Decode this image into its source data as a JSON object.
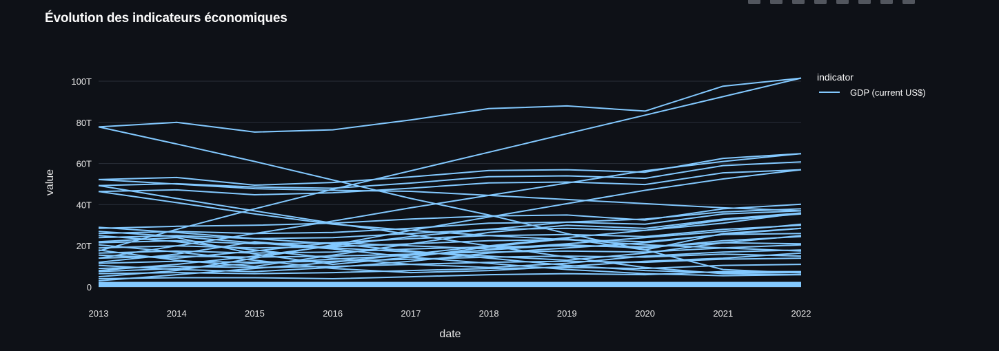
{
  "chart_data": {
    "type": "line",
    "title": "Évolution des indicateurs économiques",
    "xlabel": "date",
    "ylabel": "value",
    "x": [
      2013,
      2014,
      2015,
      2016,
      2017,
      2018,
      2019,
      2020,
      2021,
      2022
    ],
    "xtick_labels": [
      "2013",
      "2014",
      "2015",
      "2016",
      "2017",
      "2018",
      "2019",
      "2020",
      "2021",
      "2022"
    ],
    "ylim": [
      0,
      105
    ],
    "yticks": [
      0,
      20,
      40,
      60,
      80,
      100
    ],
    "ytick_labels": [
      "0",
      "20T",
      "40T",
      "60T",
      "80T",
      "100T"
    ],
    "legend": {
      "title": "indicator",
      "entries": [
        "GDP (current US$)"
      ],
      "placement": "right"
    },
    "line_color": "#83c9ff",
    "grid": true,
    "series": [
      {
        "name": "GDP (current US$)",
        "values": [
          77.8,
          80.0,
          75.3,
          76.4,
          81.2,
          86.7,
          88.0,
          85.5,
          97.6,
          101.5
        ]
      },
      {
        "name": "GDP (current US$)",
        "values": [
          77.8,
          69.5,
          61.0,
          52.0,
          43.0,
          35.0,
          26.0,
          18.0,
          8.5,
          6.8
        ]
      },
      {
        "name": "GDP (current US$)",
        "values": [
          17.5,
          28.0,
          38.0,
          47.5,
          56.5,
          65.5,
          74.5,
          83.5,
          92.5,
          101.5
        ]
      },
      {
        "name": "GDP (current US$)",
        "values": [
          52.2,
          53.2,
          49.5,
          50.8,
          53.5,
          56.6,
          57.0,
          55.8,
          62.5,
          64.8
        ]
      },
      {
        "name": "GDP (current US$)",
        "values": [
          49.3,
          50.2,
          48.6,
          48.0,
          50.5,
          53.6,
          54.0,
          52.8,
          59.0,
          60.8
        ]
      },
      {
        "name": "GDP (current US$)",
        "values": [
          46.4,
          47.2,
          44.8,
          45.8,
          48.0,
          50.6,
          51.0,
          49.8,
          55.5,
          57.0
        ]
      },
      {
        "name": "GDP (current US$)",
        "values": [
          52.2,
          50.0,
          47.8,
          47.0,
          46.5,
          44.5,
          42.5,
          40.5,
          38.5,
          37.0
        ]
      },
      {
        "name": "GDP (current US$)",
        "values": [
          49.3,
          43.0,
          37.0,
          31.0,
          25.5,
          20.0,
          14.5,
          9.5,
          6.5,
          6.0
        ]
      },
      {
        "name": "GDP (current US$)",
        "values": [
          46.4,
          41.0,
          35.5,
          30.5,
          27.5,
          25.0,
          23.0,
          20.5,
          19.0,
          20.5
        ]
      },
      {
        "name": "GDP (current US$)",
        "values": [
          14.0,
          20.0,
          26.0,
          32.0,
          38.5,
          44.5,
          50.5,
          56.5,
          61.0,
          64.8
        ]
      },
      {
        "name": "GDP (current US$)",
        "values": [
          5.0,
          8.0,
          14.0,
          20.5,
          27.5,
          34.0,
          40.5,
          47.0,
          52.5,
          57.0
        ]
      },
      {
        "name": "GDP (current US$)",
        "values": [
          28.5,
          29.5,
          30.0,
          31.0,
          33.0,
          34.5,
          35.0,
          32.5,
          38.0,
          40.2
        ]
      },
      {
        "name": "GDP (current US$)",
        "values": [
          26.0,
          27.0,
          26.0,
          26.5,
          28.5,
          31.0,
          31.5,
          30.5,
          35.5,
          37.0
        ]
      },
      {
        "name": "GDP (current US$)",
        "values": [
          24.0,
          25.0,
          23.5,
          24.0,
          26.0,
          28.0,
          28.5,
          27.5,
          32.5,
          35.5
        ]
      },
      {
        "name": "GDP (current US$)",
        "values": [
          21.5,
          22.5,
          21.0,
          21.5,
          23.5,
          25.0,
          25.5,
          24.5,
          28.0,
          30.0
        ]
      },
      {
        "name": "GDP (current US$)",
        "values": [
          19.0,
          20.0,
          19.0,
          19.5,
          21.0,
          22.5,
          23.0,
          22.0,
          25.5,
          26.0
        ]
      },
      {
        "name": "GDP (current US$)",
        "values": [
          16.5,
          17.5,
          16.5,
          17.0,
          18.5,
          19.5,
          20.0,
          19.5,
          21.5,
          21.0
        ]
      },
      {
        "name": "GDP (current US$)",
        "values": [
          14.0,
          15.0,
          14.5,
          15.0,
          16.0,
          17.0,
          17.5,
          17.0,
          19.0,
          17.5
        ]
      },
      {
        "name": "GDP (current US$)",
        "values": [
          11.5,
          12.5,
          12.0,
          12.5,
          13.5,
          14.5,
          15.0,
          14.5,
          16.0,
          15.0
        ]
      },
      {
        "name": "GDP (current US$)",
        "values": [
          9.0,
          10.0,
          9.5,
          10.0,
          11.0,
          12.0,
          12.5,
          12.0,
          13.5,
          14.0
        ]
      },
      {
        "name": "GDP (current US$)",
        "values": [
          6.5,
          7.0,
          6.5,
          7.0,
          8.0,
          9.0,
          9.5,
          9.0,
          10.5,
          11.0
        ]
      },
      {
        "name": "GDP (current US$)",
        "values": [
          4.0,
          4.5,
          4.5,
          4.0,
          5.0,
          6.0,
          6.5,
          6.0,
          7.5,
          7.5
        ]
      },
      {
        "name": "GDP (current US$)",
        "values": [
          22.0,
          24.0,
          16.0,
          11.0,
          14.5,
          19.5,
          23.5,
          18.0,
          26.0,
          28.5
        ]
      },
      {
        "name": "GDP (current US$)",
        "values": [
          12.0,
          16.0,
          22.0,
          19.0,
          17.0,
          15.0,
          13.0,
          16.5,
          21.5,
          25.0
        ]
      },
      {
        "name": "GDP (current US$)",
        "values": [
          18.0,
          13.0,
          10.0,
          15.5,
          21.0,
          26.5,
          30.0,
          28.5,
          33.0,
          36.0
        ]
      },
      {
        "name": "GDP (current US$)",
        "values": [
          3.0,
          6.0,
          9.0,
          12.0,
          16.0,
          20.0,
          24.0,
          27.5,
          31.0,
          36.0
        ]
      },
      {
        "name": "GDP (current US$)",
        "values": [
          25.0,
          22.0,
          18.0,
          14.0,
          11.0,
          9.5,
          11.5,
          15.0,
          17.0,
          18.0
        ]
      },
      {
        "name": "GDP (current US$)",
        "values": [
          8.0,
          11.0,
          15.0,
          20.0,
          24.5,
          28.0,
          31.5,
          33.0,
          36.5,
          38.0
        ]
      },
      {
        "name": "GDP (current US$)",
        "values": [
          29.0,
          26.5,
          23.5,
          21.0,
          17.5,
          14.0,
          10.5,
          8.0,
          7.0,
          7.0
        ]
      },
      {
        "name": "GDP (current US$)",
        "values": [
          15.5,
          14.0,
          17.5,
          21.5,
          20.0,
          18.5,
          21.0,
          24.0,
          27.0,
          30.5
        ]
      },
      {
        "name": "GDP (current US$)",
        "values": [
          10.5,
          8.5,
          7.5,
          9.5,
          12.5,
          16.5,
          19.0,
          21.5,
          25.5,
          28.5
        ]
      },
      {
        "name": "GDP (current US$)",
        "values": [
          20.5,
          17.0,
          13.0,
          9.0,
          7.0,
          8.0,
          10.0,
          12.5,
          14.0,
          16.5
        ]
      },
      {
        "name": "GDP (current US$)",
        "values": [
          7.5,
          9.0,
          11.5,
          13.5,
          15.5,
          18.0,
          20.5,
          19.0,
          22.5,
          24.5
        ]
      },
      {
        "name": "GDP (current US$)",
        "values": [
          27.0,
          24.5,
          21.5,
          18.5,
          14.5,
          11.5,
          8.5,
          6.5,
          5.5,
          6.0
        ]
      }
    ]
  }
}
